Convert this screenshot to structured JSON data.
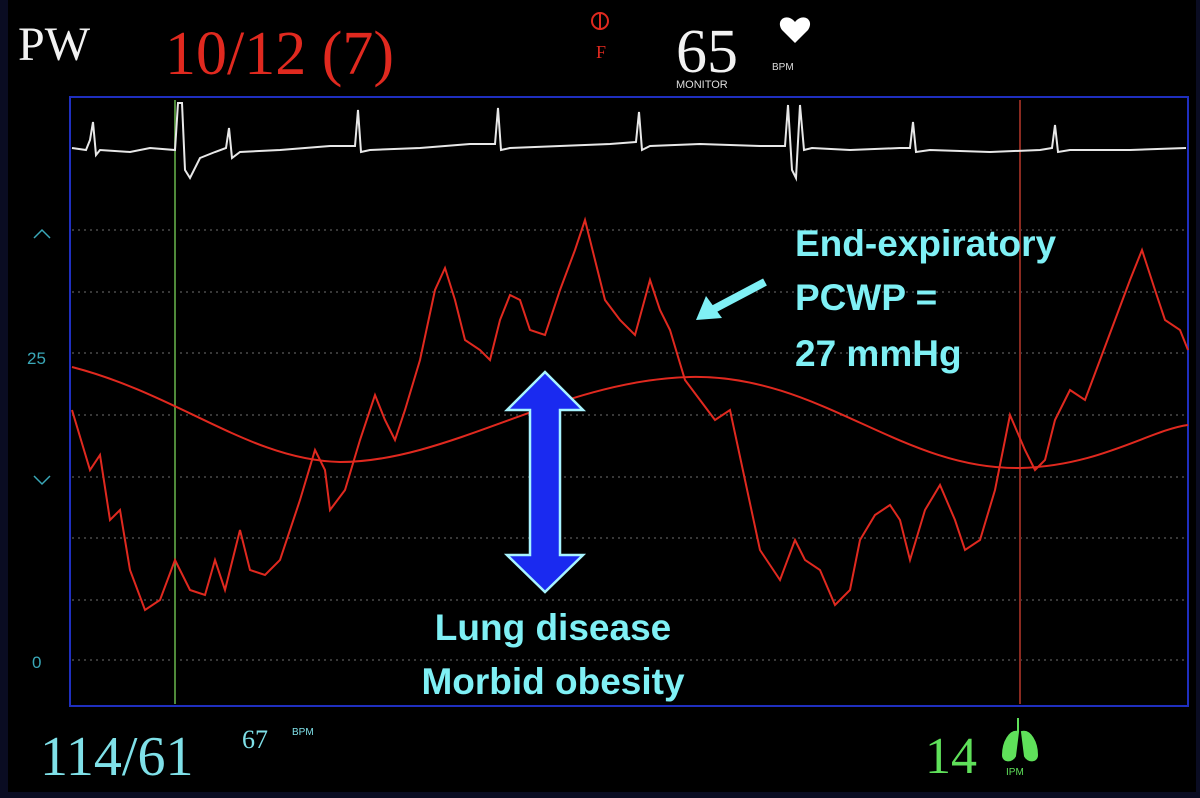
{
  "header": {
    "mode": "PW",
    "pressure": "10/12 (7)",
    "indicator": "F",
    "heart_rate": "65",
    "hr_source": "MONITOR",
    "hr_unit": "BPM"
  },
  "axis": {
    "labels": [
      "25",
      "0"
    ]
  },
  "annotations": {
    "pcwp": [
      "End-expiratory",
      "PCWP =",
      "27 mmHg"
    ],
    "causes": [
      "Lung disease",
      "Morbid obesity"
    ]
  },
  "footer": {
    "blood_pressure": "114/61",
    "pulse": "67",
    "pulse_unit": "BPM",
    "resp_rate": "14",
    "resp_unit": "IPM"
  }
}
